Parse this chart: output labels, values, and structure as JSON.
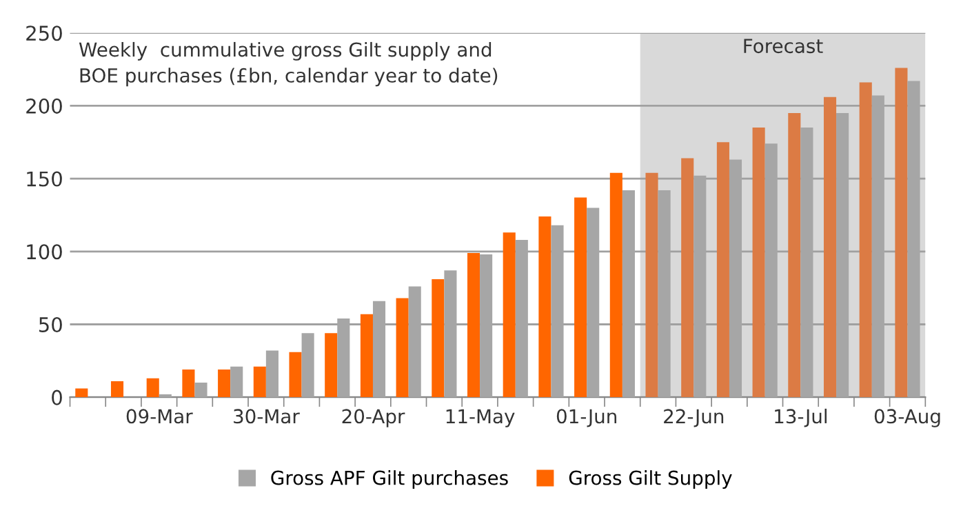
{
  "chart_data": {
    "type": "bar",
    "title": "Weekly  cummulative gross Gilt supply and\nBOE purchases (£bn, calendar year to date)",
    "categories": [
      null,
      null,
      "09-Mar",
      null,
      null,
      "30-Mar",
      null,
      null,
      "20-Apr",
      null,
      null,
      "11-May",
      null,
      null,
      "01-Jun",
      null,
      null,
      "22-Jun",
      null,
      null,
      "13-Jul",
      null,
      null,
      "03-Aug"
    ],
    "series": [
      {
        "name": "Gross Gilt Supply",
        "color": "#ff6600",
        "colors": [
          "#ff6600",
          "#ff6600",
          "#ff6600",
          "#ff6600",
          "#ff6600",
          "#ff6600",
          "#ff6600",
          "#ff6600",
          "#ff6600",
          "#ff6600",
          "#ff6600",
          "#ff6600",
          "#ff6600",
          "#ff6600",
          "#ff6600",
          "#ff6600",
          "#dc7b44",
          "#dc7b44",
          "#dc7b44",
          "#dc7b44",
          "#dc7b44",
          "#dc7b44",
          "#dc7b44",
          "#dc7b44"
        ],
        "values": [
          6,
          11,
          13,
          19,
          19,
          21,
          31,
          44,
          57,
          68,
          81,
          99,
          113,
          124,
          137,
          154,
          154,
          164,
          175,
          185,
          195,
          206,
          216,
          226
        ]
      },
      {
        "name": "Gross APF Gilt purchases",
        "color": "#a6a6a6",
        "values": [
          null,
          null,
          2,
          10,
          21,
          32,
          44,
          54,
          66,
          76,
          87,
          98,
          108,
          118,
          130,
          142,
          142,
          152,
          163,
          174,
          185,
          195,
          207,
          217
        ]
      }
    ],
    "ylim": [
      0,
      250
    ],
    "yticks": [
      0,
      50,
      100,
      150,
      200,
      250
    ],
    "grid": "y",
    "legend": "bottom",
    "annotations": [
      "Forecast"
    ]
  }
}
